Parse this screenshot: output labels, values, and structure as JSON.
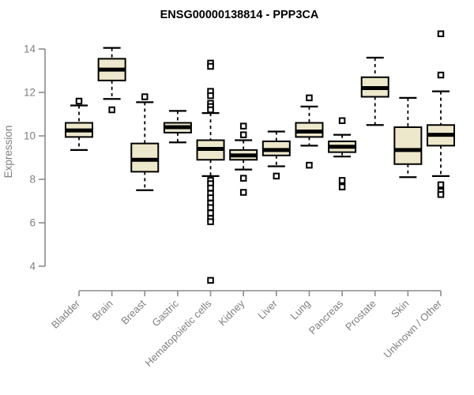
{
  "colors": {
    "box_fill": "#EDE8CC",
    "line": "#000000",
    "axis": "#8C8C8C",
    "text": "#7F7F7F",
    "title": "#000000",
    "background": "#FFFFFF"
  },
  "chart_data": {
    "type": "boxplot",
    "title": "ENSG00000138814 - PPP3CA",
    "xlabel": "",
    "ylabel": "Expression",
    "ylim": [
      3.1,
      14.9
    ],
    "yticks": [
      4,
      6,
      8,
      10,
      12,
      14
    ],
    "grid": false,
    "legend": "none",
    "categories": [
      "Bladder",
      "Brain",
      "Breast",
      "Gastric",
      "Hematopoietic cells",
      "Kidney",
      "Liver",
      "Lung",
      "Pancreas",
      "Prostate",
      "Skin",
      "Unknown / Other"
    ],
    "series": [
      {
        "name": "Bladder",
        "whisker_low": 9.35,
        "q1": 9.95,
        "median": 10.25,
        "q3": 10.6,
        "whisker_high": 11.4,
        "outliers": [
          11.6
        ]
      },
      {
        "name": "Brain",
        "whisker_low": 11.7,
        "q1": 12.55,
        "median": 13.05,
        "q3": 13.55,
        "whisker_high": 14.05,
        "outliers": [
          11.2
        ]
      },
      {
        "name": "Breast",
        "whisker_low": 7.5,
        "q1": 8.35,
        "median": 8.9,
        "q3": 9.65,
        "whisker_high": 11.55,
        "outliers": [
          11.8
        ]
      },
      {
        "name": "Gastric",
        "whisker_low": 9.7,
        "q1": 10.15,
        "median": 10.4,
        "q3": 10.6,
        "whisker_high": 11.15,
        "outliers": []
      },
      {
        "name": "Hematopoietic cells",
        "whisker_low": 8.15,
        "q1": 8.9,
        "median": 9.4,
        "q3": 9.8,
        "whisker_high": 11.05,
        "outliers": [
          13.35,
          13.2,
          12.05,
          11.85,
          11.5,
          11.35,
          11.2,
          7.95,
          7.8,
          7.6,
          7.35,
          7.15,
          6.9,
          6.7,
          6.45,
          6.2,
          6.05,
          3.35
        ]
      },
      {
        "name": "Kidney",
        "whisker_low": 8.45,
        "q1": 8.9,
        "median": 9.1,
        "q3": 9.35,
        "whisker_high": 9.8,
        "outliers": [
          10.45,
          10.05,
          8.05,
          7.4
        ]
      },
      {
        "name": "Liver",
        "whisker_low": 8.6,
        "q1": 9.1,
        "median": 9.35,
        "q3": 9.75,
        "whisker_high": 10.2,
        "outliers": [
          8.15
        ]
      },
      {
        "name": "Lung",
        "whisker_low": 9.55,
        "q1": 9.95,
        "median": 10.2,
        "q3": 10.6,
        "whisker_high": 11.35,
        "outliers": [
          11.75,
          8.65
        ]
      },
      {
        "name": "Pancreas",
        "whisker_low": 9.05,
        "q1": 9.25,
        "median": 9.5,
        "q3": 9.75,
        "whisker_high": 10.05,
        "outliers": [
          10.7,
          7.95,
          7.65
        ]
      },
      {
        "name": "Prostate",
        "whisker_low": 10.5,
        "q1": 11.8,
        "median": 12.2,
        "q3": 12.7,
        "whisker_high": 13.6,
        "outliers": []
      },
      {
        "name": "Skin",
        "whisker_low": 8.1,
        "q1": 8.7,
        "median": 9.35,
        "q3": 10.4,
        "whisker_high": 11.75,
        "outliers": []
      },
      {
        "name": "Unknown / Other",
        "whisker_low": 8.15,
        "q1": 9.55,
        "median": 10.05,
        "q3": 10.5,
        "whisker_high": 12.05,
        "outliers": [
          14.7,
          12.8,
          7.75,
          7.45,
          7.3
        ]
      }
    ]
  }
}
